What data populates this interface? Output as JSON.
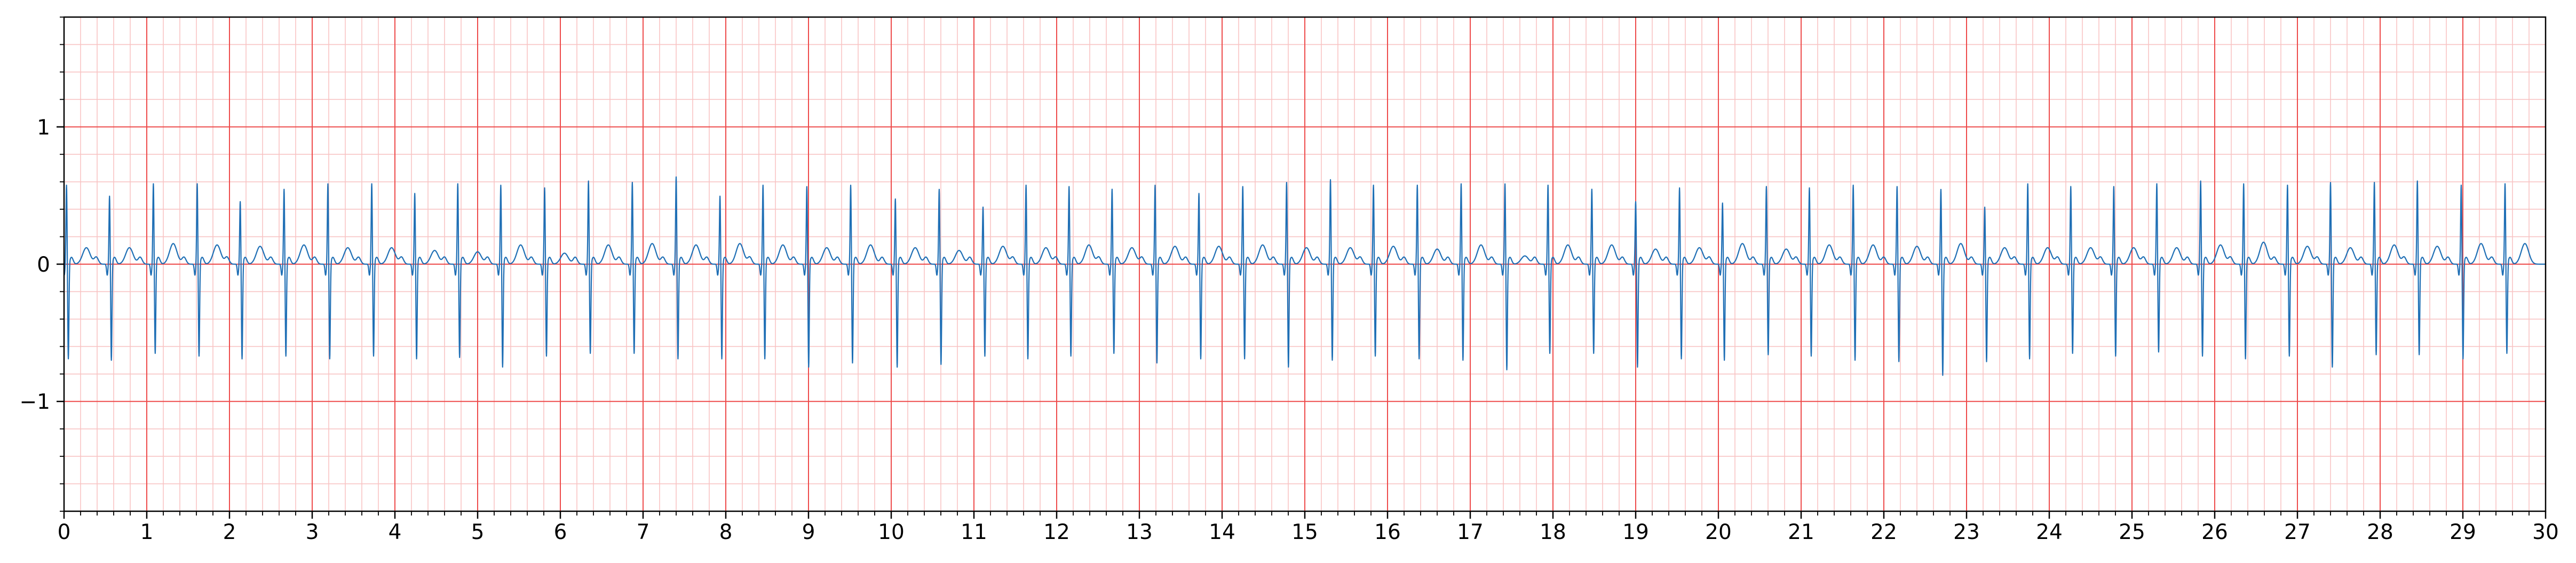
{
  "chart_data": {
    "type": "line",
    "title": "",
    "xlabel": "",
    "ylabel": "",
    "xlim": [
      0,
      30
    ],
    "ylim": [
      -1.8,
      1.8
    ],
    "x_ticks": [
      0,
      1,
      2,
      3,
      4,
      5,
      6,
      7,
      8,
      9,
      10,
      11,
      12,
      13,
      14,
      15,
      16,
      17,
      18,
      19,
      20,
      21,
      22,
      23,
      24,
      25,
      26,
      27,
      28,
      29,
      30
    ],
    "x_tick_labels": [
      "0",
      "1",
      "2",
      "3",
      "4",
      "5",
      "6",
      "7",
      "8",
      "9",
      "10",
      "11",
      "12",
      "13",
      "14",
      "15",
      "16",
      "17",
      "18",
      "19",
      "20",
      "21",
      "22",
      "23",
      "24",
      "25",
      "26",
      "27",
      "28",
      "29",
      "30"
    ],
    "y_ticks": [
      -1,
      0,
      1
    ],
    "y_tick_labels": [
      "−1",
      "0",
      "1"
    ],
    "grid": true,
    "grid_major_x_step": 1,
    "grid_minor_x_step": 0.2,
    "grid_major_y_step": 1,
    "grid_minor_y_step": 0.2,
    "colors": {
      "line": "#1f6fb5",
      "major_grid": "#ee4b4b",
      "minor_grid": "#f8c4c4",
      "axes": "#000000"
    },
    "series": [
      {
        "name": "",
        "beat_times": [
          0.03,
          0.55,
          1.08,
          1.61,
          2.13,
          2.66,
          3.19,
          3.72,
          4.24,
          4.76,
          5.28,
          5.81,
          6.34,
          6.87,
          7.4,
          7.93,
          8.45,
          8.98,
          9.51,
          10.05,
          10.58,
          11.11,
          11.63,
          12.15,
          12.67,
          13.19,
          13.72,
          14.25,
          14.78,
          15.31,
          15.83,
          16.36,
          16.89,
          17.42,
          17.94,
          18.47,
          19.0,
          19.53,
          20.05,
          20.58,
          21.1,
          21.63,
          22.16,
          22.69,
          23.22,
          23.74,
          24.26,
          24.78,
          25.3,
          25.83,
          26.35,
          26.88,
          27.4,
          27.93,
          28.45,
          28.98,
          29.51
        ],
        "r_peaks": [
          0.58,
          0.5,
          0.59,
          0.59,
          0.46,
          0.55,
          0.59,
          0.59,
          0.52,
          0.59,
          0.58,
          0.56,
          0.61,
          0.6,
          0.64,
          0.5,
          0.58,
          0.57,
          0.58,
          0.48,
          0.55,
          0.42,
          0.58,
          0.57,
          0.55,
          0.58,
          0.52,
          0.57,
          0.6,
          0.62,
          0.58,
          0.58,
          0.59,
          0.59,
          0.58,
          0.55,
          0.46,
          0.56,
          0.45,
          0.57,
          0.56,
          0.58,
          0.57,
          0.55,
          0.42,
          0.59,
          0.57,
          0.57,
          0.59,
          0.61,
          0.59,
          0.58,
          0.6,
          0.6,
          0.61,
          0.58,
          0.59
        ],
        "s_troughs": [
          -0.7,
          -0.71,
          -0.66,
          -0.68,
          -0.7,
          -0.68,
          -0.7,
          -0.68,
          -0.7,
          -0.69,
          -0.76,
          -0.68,
          -0.66,
          -0.66,
          -0.7,
          -0.7,
          -0.7,
          -0.76,
          -0.73,
          -0.76,
          -0.74,
          -0.68,
          -0.7,
          -0.68,
          -0.66,
          -0.73,
          -0.7,
          -0.7,
          -0.76,
          -0.71,
          -0.68,
          -0.7,
          -0.71,
          -0.78,
          -0.66,
          -0.66,
          -0.76,
          -0.7,
          -0.71,
          -0.67,
          -0.68,
          -0.71,
          -0.72,
          -0.82,
          -0.72,
          -0.7,
          -0.66,
          -0.68,
          -0.65,
          -0.68,
          -0.7,
          -0.68,
          -0.76,
          -0.67,
          -0.67,
          -0.7,
          -0.66
        ],
        "t_peaks": [
          0.12,
          0.12,
          0.15,
          0.14,
          0.13,
          0.14,
          0.12,
          0.12,
          0.1,
          0.09,
          0.14,
          0.08,
          0.14,
          0.15,
          0.14,
          0.15,
          0.14,
          0.12,
          0.14,
          0.12,
          0.1,
          0.13,
          0.12,
          0.14,
          0.12,
          0.13,
          0.13,
          0.14,
          0.12,
          0.12,
          0.13,
          0.11,
          0.14,
          0.06,
          0.14,
          0.14,
          0.11,
          0.12,
          0.15,
          0.11,
          0.14,
          0.14,
          0.13,
          0.15,
          0.12,
          0.12,
          0.12,
          0.12,
          0.12,
          0.14,
          0.16,
          0.13,
          0.12,
          0.14,
          0.13,
          0.15,
          0.15
        ]
      }
    ]
  }
}
